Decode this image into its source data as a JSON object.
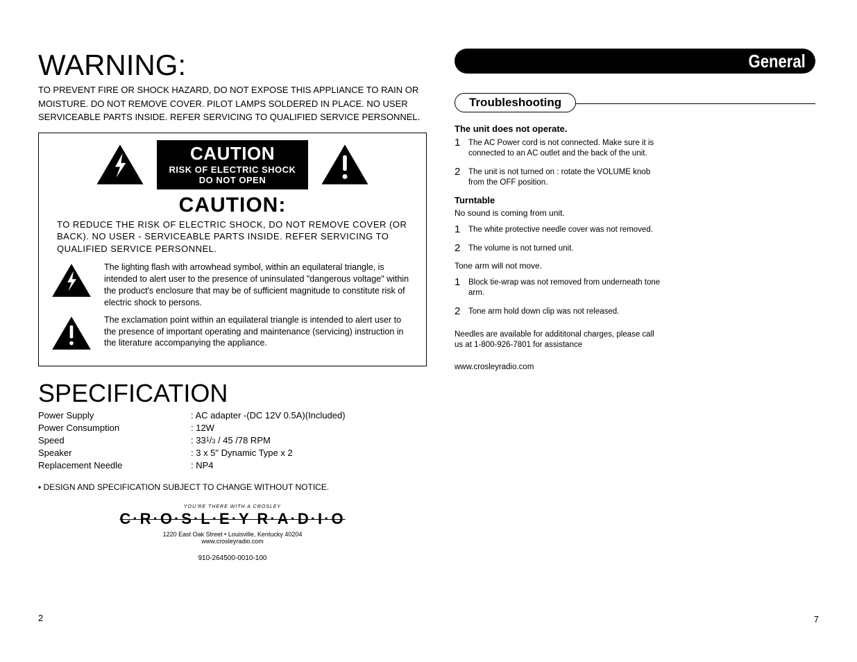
{
  "left": {
    "warning_title": "WARNING:",
    "warning_body": "TO PREVENT FIRE OR SHOCK HAZARD, DO NOT EXPOSE THIS APPLIANCE TO RAIN OR MOISTURE. DO NOT REMOVE COVER. PILOT LAMPS SOLDERED IN PLACE. NO USER SERVICEABLE PARTS INSIDE. REFER SERVICING TO QUALIFIED SERVICE PERSONNEL.",
    "caution_box": {
      "black_line1": "CAUTION",
      "black_line2": "RISK OF ELECTRIC SHOCK",
      "black_line3": "DO NOT OPEN",
      "heading": "CAUTION:",
      "text": "TO REDUCE THE RISK OF ELECTRIC SHOCK, DO NOT REMOVE COVER (OR BACK). NO USER - SERVICEABLE PARTS INSIDE. REFER SERVICING TO QUALIFIED SERVICE PERSONNEL.",
      "bolt_desc": "The lighting flash with arrowhead symbol, within an equilateral triangle, is intended to alert user to the presence of uninsulated \"dangerous voltage\" within the product's enclosure that may be of sufficient magnitude to constitute risk of electric shock to persons.",
      "excl_desc": "The exclamation point within an equilateral triangle is intended to alert user to the presence of important operating and maintenance (servicing) instruction in the literature accompanying the appliance."
    },
    "spec_title": "SPECIFICATION",
    "specs": [
      {
        "label": "Power Supply",
        "value": ": AC adapter -(DC 12V  0.5A)(Included)"
      },
      {
        "label": "Power Consumption",
        "value": ": 12W"
      },
      {
        "label": "Speed",
        "value_html": ": 33<span class='sup'>1</span>/<span class='sub'>3</span> / 45 /78 RPM"
      },
      {
        "label": "Speaker",
        "value": ": 3 x 5\" Dynamic Type x 2"
      },
      {
        "label": "Replacement Needle",
        "value": ": NP4"
      }
    ],
    "spec_note": "DESIGN AND SPECIFICATION SUBJECT TO CHANGE WITHOUT NOTICE.",
    "brand": {
      "tagline": "YOU'RE THERE WITH A CROSLEY",
      "name": "C·R·O·S·L·E·Y  R·A·D·I·O",
      "address": "1220 East Oak Street • Louisville, Kentucky 40204",
      "url": "www.crosleyradio.com"
    },
    "part_number": "910-264500-0010-100",
    "page_num": "2"
  },
  "right": {
    "section_label": "General",
    "troubleshoot_title": "Troubleshooting",
    "groups": [
      {
        "heading": "The unit does not operate.",
        "items": [
          {
            "n": "1",
            "t": "The AC Power cord is not connected. Make sure it is connected to an AC outlet and the back of the unit."
          },
          {
            "n": "2",
            "t": "The unit is not turned on : rotate the VOLUME knob from the OFF position."
          }
        ]
      },
      {
        "heading": "Turntable",
        "sub": "No sound is coming from unit.",
        "items": [
          {
            "n": "1",
            "t": "The white protective needle cover was not removed."
          },
          {
            "n": "2",
            "t": "The volume is not turned unit."
          }
        ]
      },
      {
        "sub": "Tone arm will not move.",
        "items": [
          {
            "n": "1",
            "t": "Block tie-wrap was not removed from underneath tone arm."
          },
          {
            "n": "2",
            "t": "Tone arm hold down clip was not released."
          }
        ]
      }
    ],
    "footer": "Needles are available for addititonal charges, please call us at 1-800-926-7801 for assistance",
    "url": "www.crosleyradio.com",
    "page_num": "7"
  },
  "colors": {
    "background": "#ffffff",
    "text": "#000000",
    "header_bg": "#000000",
    "header_text": "#ffffff"
  }
}
